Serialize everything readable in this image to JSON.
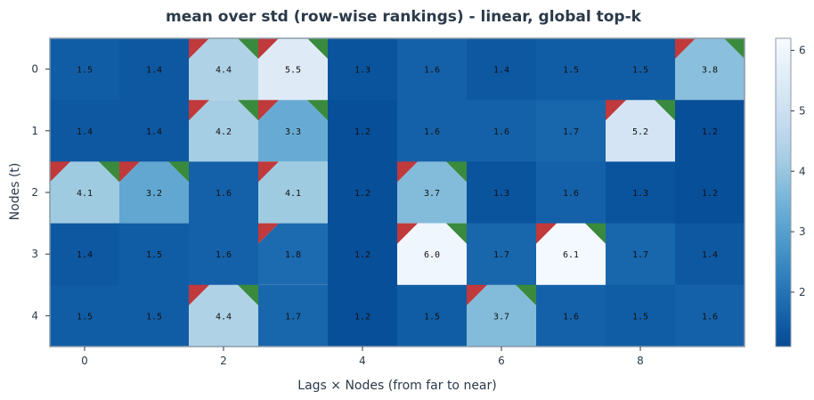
{
  "chart_data": {
    "type": "heatmap",
    "title": "mean over std (row-wise rankings) - linear, global top-k",
    "xlabel": "Lags × Nodes (from far to near)",
    "ylabel": "Nodes (t)",
    "x_ticks": [
      "0",
      "2",
      "4",
      "6",
      "8"
    ],
    "x_tick_positions": [
      0,
      2,
      4,
      6,
      8
    ],
    "y_ticks": [
      "0",
      "1",
      "2",
      "3",
      "4"
    ],
    "colorbar_ticks": [
      "2",
      "3",
      "4",
      "5",
      "6"
    ],
    "colorbar_tick_values": [
      2,
      3,
      4,
      5,
      6
    ],
    "value_range": [
      1.1,
      6.2
    ],
    "n_cols": 10,
    "rows": [
      [
        1.5,
        1.4,
        4.4,
        5.5,
        1.3,
        1.6,
        1.4,
        1.5,
        1.5,
        3.8
      ],
      [
        1.4,
        1.4,
        4.2,
        3.3,
        1.2,
        1.6,
        1.6,
        1.7,
        5.2,
        1.2
      ],
      [
        4.1,
        3.2,
        1.6,
        4.1,
        1.2,
        3.7,
        1.3,
        1.6,
        1.3,
        1.2
      ],
      [
        1.4,
        1.5,
        1.6,
        1.8,
        1.2,
        6.0,
        1.7,
        6.1,
        1.7,
        1.4
      ],
      [
        1.5,
        1.5,
        4.4,
        1.7,
        1.2,
        1.5,
        3.7,
        1.6,
        1.5,
        1.6
      ]
    ],
    "labels": [
      [
        "1.5",
        "1.4",
        "4.4",
        "5.5",
        "1.3",
        "1.6",
        "1.4",
        "1.5",
        "1.5",
        "3.8"
      ],
      [
        "1.4",
        "1.4",
        "4.2",
        "3.3",
        "1.2",
        "1.6",
        "1.6",
        "1.7",
        "5.2",
        "1.2"
      ],
      [
        "4.1",
        "3.2",
        "1.6",
        "4.1",
        "1.2",
        "3.7",
        "1.3",
        "1.6",
        "1.3",
        "1.2"
      ],
      [
        "1.4",
        "1.5",
        "1.6",
        "1.8",
        "1.2",
        "6.0",
        "1.7",
        "6.1",
        "1.7",
        "1.4"
      ],
      [
        "1.5",
        "1.5",
        "4.4",
        "1.7",
        "1.2",
        "1.5",
        "3.7",
        "1.6",
        "1.5",
        "1.6"
      ]
    ],
    "highlighted_cells": [
      {
        "row": 0,
        "col": 2,
        "tl": "red",
        "tr": "green"
      },
      {
        "row": 0,
        "col": 3,
        "tl": "red",
        "tr": "green"
      },
      {
        "row": 0,
        "col": 9,
        "tl": "red",
        "tr": "green"
      },
      {
        "row": 1,
        "col": 2,
        "tl": "red",
        "tr": "green"
      },
      {
        "row": 1,
        "col": 3,
        "tl": "red",
        "tr": "green"
      },
      {
        "row": 1,
        "col": 8,
        "tl": "red",
        "tr": "green"
      },
      {
        "row": 2,
        "col": 0,
        "tl": "red",
        "tr": "green"
      },
      {
        "row": 2,
        "col": 1,
        "tl": "red",
        "tr": "green"
      },
      {
        "row": 2,
        "col": 3,
        "tl": "red",
        "tr": "none"
      },
      {
        "row": 2,
        "col": 5,
        "tl": "red",
        "tr": "green"
      },
      {
        "row": 3,
        "col": 3,
        "tl": "red",
        "tr": "none"
      },
      {
        "row": 3,
        "col": 5,
        "tl": "red",
        "tr": "green"
      },
      {
        "row": 3,
        "col": 7,
        "tl": "red",
        "tr": "green"
      },
      {
        "row": 4,
        "col": 2,
        "tl": "red",
        "tr": "green"
      },
      {
        "row": 4,
        "col": 6,
        "tl": "red",
        "tr": "green"
      }
    ],
    "colormap": "Blues_r",
    "grid": false,
    "legend": "colorbar-right"
  },
  "colors": {
    "marker_red": "#c0393b",
    "marker_green": "#3a8a3d",
    "frame": "#8c9aa6",
    "text": "#2b3a4a"
  }
}
